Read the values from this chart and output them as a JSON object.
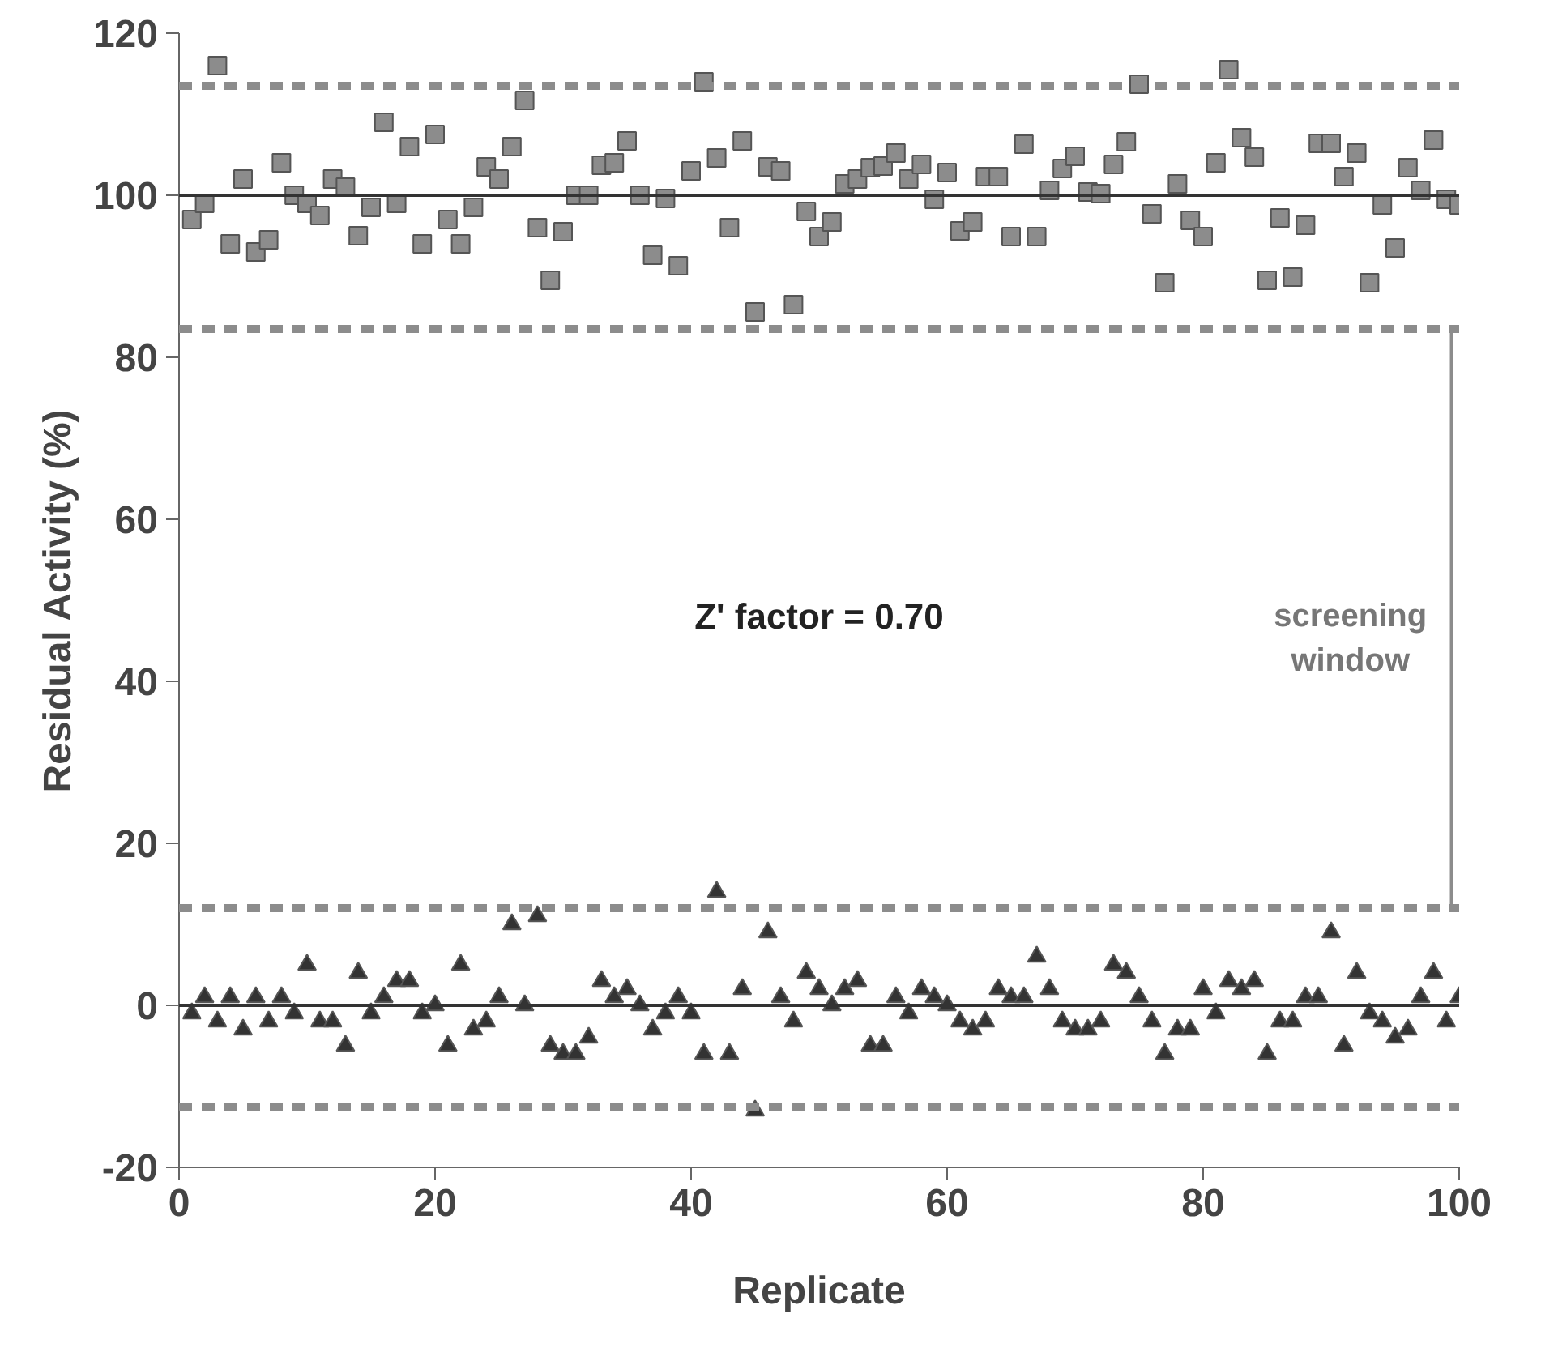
{
  "chart_data": {
    "type": "scatter",
    "xlabel": "Replicate",
    "ylabel": "Residual Activity (%)",
    "xlim": [
      0,
      100
    ],
    "xticks": [
      0,
      20,
      40,
      60,
      80,
      100
    ],
    "ylim": [
      -20,
      120
    ],
    "yticks": [
      -20,
      0,
      20,
      40,
      60,
      80,
      100,
      120
    ],
    "grid": false,
    "series": [
      {
        "color": "#8c8c8c",
        "marker": "square",
        "x": [
          1,
          2,
          3,
          4,
          5,
          6,
          7,
          8,
          9,
          10,
          11,
          12,
          13,
          14,
          15,
          16,
          17,
          18,
          19,
          20,
          21,
          22,
          23,
          24,
          25,
          26,
          27,
          28,
          29,
          30,
          31,
          32,
          33,
          34,
          35,
          36,
          37,
          38,
          39,
          40,
          41,
          42,
          43,
          44,
          45,
          46,
          47,
          48,
          49,
          50,
          51,
          52,
          53,
          54,
          55,
          56,
          57,
          58,
          59,
          60,
          61,
          62,
          63,
          64,
          65,
          66,
          67,
          68,
          69,
          70,
          71,
          72,
          73,
          74,
          75,
          76,
          77,
          78,
          79,
          80,
          81,
          82,
          83,
          84,
          85,
          86,
          87,
          88,
          89,
          90,
          91,
          92,
          93,
          94,
          95,
          96,
          97,
          98,
          99,
          100
        ],
        "values": [
          97,
          99,
          116,
          94,
          102,
          93,
          94.5,
          104,
          100,
          99,
          97.5,
          102,
          101,
          95,
          98.5,
          109,
          99,
          106,
          94,
          107.5,
          97,
          94,
          98.5,
          103.5,
          102,
          106,
          111.7,
          96,
          89.5,
          95.5,
          100,
          100,
          103.7,
          104,
          106.7,
          100,
          92.6,
          99.6,
          91.3,
          103,
          114,
          104.6,
          96,
          106.7,
          85.6,
          103.5,
          103,
          86.5,
          98,
          94.9,
          96.7,
          101.4,
          102,
          103.4,
          103.6,
          105.2,
          102,
          103.8,
          99.5,
          102.8,
          95.6,
          96.7,
          102.3,
          102.3,
          94.9,
          106.3,
          94.9,
          100.6,
          103.3,
          104.8,
          100.4,
          100.2,
          103.8,
          106.6,
          113.7,
          97.7,
          89.2,
          101.4,
          96.9,
          94.9,
          104,
          115.5,
          107.1,
          104.7,
          89.5,
          97.2,
          89.9,
          96.3,
          106.4,
          106.4,
          102.3,
          105.2,
          89.2,
          98.8,
          93.5,
          103.4,
          100.6,
          106.8,
          99.5,
          98.8
        ]
      },
      {
        "type": "line",
        "color": "#8c8c8c",
        "x": [
          99.4,
          99.4
        ],
        "values": [
          12,
          83.5
        ]
      },
      {
        "color": "#333333",
        "marker": "triangle",
        "x": [
          1,
          2,
          3,
          4,
          5,
          6,
          7,
          8,
          9,
          10,
          11,
          12,
          13,
          14,
          15,
          16,
          17,
          18,
          19,
          20,
          21,
          22,
          23,
          24,
          25,
          26,
          27,
          28,
          29,
          30,
          31,
          32,
          33,
          34,
          35,
          36,
          37,
          38,
          39,
          40,
          41,
          42,
          43,
          44,
          45,
          46,
          47,
          48,
          49,
          50,
          51,
          52,
          53,
          54,
          55,
          56,
          57,
          58,
          59,
          60,
          61,
          62,
          63,
          64,
          65,
          66,
          67,
          68,
          69,
          70,
          71,
          72,
          73,
          74,
          75,
          76,
          77,
          78,
          79,
          80,
          81,
          82,
          83,
          84,
          85,
          86,
          87,
          88,
          89,
          90,
          91,
          92,
          93,
          94,
          95,
          96,
          97,
          98,
          99,
          100
        ],
        "values": [
          -1,
          1,
          -2,
          1,
          -3,
          1,
          -2,
          1,
          -1,
          5,
          -2,
          -2,
          -5,
          4,
          -1,
          1,
          3,
          3,
          -1,
          0,
          -5,
          5,
          -3,
          -2,
          1,
          10,
          0,
          11,
          -5,
          -6,
          -6,
          -4,
          3,
          1,
          2,
          0,
          -3,
          -1,
          1,
          -1,
          -6,
          14,
          -6,
          2,
          -13,
          9,
          1,
          -2,
          4,
          2,
          0,
          2,
          3,
          -5,
          -5,
          1,
          -1,
          2,
          1,
          0,
          -2,
          -3,
          -2,
          2,
          1,
          1,
          6,
          2,
          -2,
          -3,
          -3,
          -2,
          5,
          4,
          1,
          -2,
          -6,
          -3,
          -3,
          2,
          -1,
          3,
          2,
          3,
          -6,
          -2,
          -2,
          1,
          1,
          9,
          -5,
          4,
          -1,
          -2,
          -4,
          -3,
          1,
          4,
          -2,
          1
        ]
      }
    ],
    "ref_lines": [
      {
        "axis": "y",
        "value": 100,
        "color": "#333333",
        "line_style": "solid"
      },
      {
        "axis": "y",
        "value": 0,
        "color": "#333333",
        "line_style": "solid"
      },
      {
        "axis": "y",
        "value": 113.5,
        "color": "#8c8c8c",
        "line_style": "dashed"
      },
      {
        "axis": "y",
        "value": 83.5,
        "color": "#8c8c8c",
        "line_style": "dashed"
      },
      {
        "axis": "y",
        "value": 12,
        "color": "#8c8c8c",
        "line_style": "dashed"
      },
      {
        "axis": "y",
        "value": -12.5,
        "color": "#8c8c8c",
        "line_style": "dashed"
      }
    ],
    "annotations": [
      "Z' factor = 0.70",
      "screening window"
    ]
  }
}
